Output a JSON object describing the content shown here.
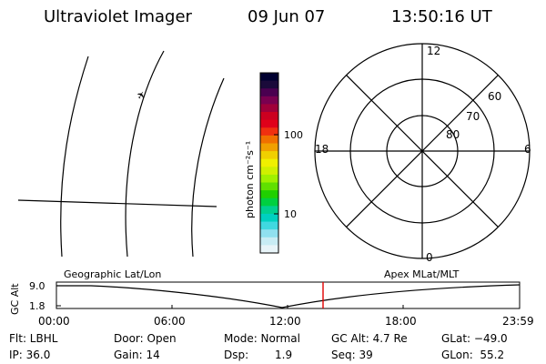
{
  "header": {
    "instrument": "Ultraviolet Imager",
    "date": "09 Jun 07",
    "time": "13:50:16 UT"
  },
  "colorbar": {
    "label": "photon cm⁻²s⁻¹",
    "ticks": [
      "100",
      "10"
    ],
    "colors": [
      "#000030",
      "#1a0a3a",
      "#4a0050",
      "#7a0050",
      "#a0003a",
      "#cc0020",
      "#e0001a",
      "#f03010",
      "#f07000",
      "#f0a000",
      "#f0d000",
      "#f0f000",
      "#d0f000",
      "#a0f000",
      "#60e000",
      "#20d000",
      "#00d040",
      "#00d090",
      "#00d0c0",
      "#40d8e0",
      "#90e0ef",
      "#c8ecf4",
      "#e8f4f8"
    ]
  },
  "polar": {
    "mlt_labels": {
      "top": "12",
      "right": "6",
      "bottom": "0",
      "left": "18"
    },
    "lat_labels": [
      "60",
      "70",
      "80"
    ]
  },
  "map": {
    "marker": "✈"
  },
  "timeline": {
    "y_axis_label": "GC Alt",
    "y_ticks": [
      "9.0",
      "1.8"
    ],
    "left_label": "Geographic Lat/Lon",
    "right_label": "Apex MLat/MLT",
    "x_ticks": [
      "00:00",
      "06:00",
      "12:00",
      "18:00",
      "23:59"
    ],
    "current_marker_color": "#e00000"
  },
  "status": {
    "filter": "Flt: LBHL",
    "ip": "IP: 36.0",
    "door": "Door: Open",
    "gain": "Gain: 14",
    "mode": "Mode: Normal",
    "dsp": "Dsp:",
    "dsp_value": "1.9",
    "gc_alt": "GC Alt: 4.7 Re",
    "seq": "Seq: 39",
    "glat": "GLat: −49.0",
    "glon": "GLon:  55.2"
  }
}
